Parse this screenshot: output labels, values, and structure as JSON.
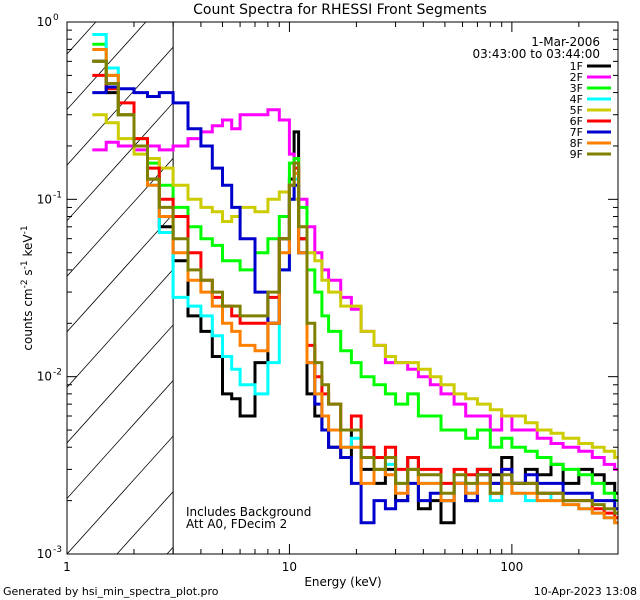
{
  "chart_data": {
    "type": "line",
    "title": "Count Spectra for RHESSI Front Segments",
    "xlabel": "Energy (keV)",
    "ylabel": {
      "prefix": "counts cm",
      "exp1": "-2",
      "mid1": " s",
      "exp2": "-1",
      "mid2": " keV",
      "exp3": "-1"
    },
    "xscale": "log",
    "yscale": "log",
    "xlim": [
      1,
      300
    ],
    "ylim": [
      0.001,
      1.0
    ],
    "x_ticks": [
      {
        "v": 1,
        "label": "1"
      },
      {
        "v": 10,
        "label": "10"
      },
      {
        "v": 100,
        "label": "100"
      }
    ],
    "y_ticks": [
      {
        "v": 0.001,
        "base": "10",
        "exp": "-3"
      },
      {
        "v": 0.01,
        "base": "10",
        "exp": "-2"
      },
      {
        "v": 0.1,
        "base": "10",
        "exp": "-1"
      },
      {
        "v": 1,
        "base": "10",
        "exp": "0"
      }
    ],
    "date_label": "1-Mar-2006",
    "time_label": "03:43:00 to 03:44:00",
    "annotations": [
      "Includes Background",
      "Att A0, FDecim 2"
    ],
    "hatch_xmax": 3,
    "footer_left": "Generated by hsi_min_spectra_plot.pro",
    "footer_right": "10-Apr-2023 13:08",
    "legend_position": "top-right",
    "series": [
      {
        "name": "1F",
        "color": "#000000",
        "x": [
          1.3,
          1.5,
          1.7,
          2,
          2.3,
          2.6,
          3,
          3.5,
          4,
          4.5,
          5,
          5.5,
          6,
          7,
          8,
          9,
          10,
          10.5,
          11,
          12,
          13,
          14,
          15,
          17,
          19,
          21,
          24,
          27,
          30,
          34,
          38,
          43,
          48,
          55,
          62,
          70,
          80,
          90,
          100,
          115,
          130,
          150,
          170,
          200,
          230,
          260,
          290
        ],
        "y": [
          0.6,
          0.4,
          0.3,
          0.2,
          0.13,
          0.07,
          0.045,
          0.022,
          0.018,
          0.013,
          0.008,
          0.0075,
          0.006,
          0.012,
          0.02,
          0.06,
          0.13,
          0.24,
          0.06,
          0.008,
          0.006,
          0.005,
          0.004,
          0.0035,
          0.005,
          0.003,
          0.0025,
          0.003,
          0.002,
          0.0035,
          0.0018,
          0.002,
          0.0015,
          0.0025,
          0.002,
          0.003,
          0.0028,
          0.0035,
          0.0025,
          0.003,
          0.0028,
          0.0032,
          0.0025,
          0.003,
          0.0028,
          0.0025,
          0.0022
        ]
      },
      {
        "name": "2F",
        "color": "#ff00ff",
        "x": [
          1.3,
          1.5,
          1.7,
          2,
          2.3,
          2.6,
          3,
          3.5,
          4,
          4.5,
          5,
          5.5,
          6,
          7,
          8,
          9,
          10,
          10.5,
          11,
          12,
          13,
          14,
          15,
          17,
          19,
          21,
          24,
          27,
          30,
          34,
          38,
          43,
          48,
          55,
          62,
          70,
          80,
          90,
          100,
          115,
          130,
          150,
          170,
          200,
          230,
          260,
          290
        ],
        "y": [
          0.19,
          0.21,
          0.2,
          0.19,
          0.2,
          0.19,
          0.2,
          0.22,
          0.24,
          0.26,
          0.28,
          0.25,
          0.3,
          0.3,
          0.32,
          0.28,
          0.18,
          0.15,
          0.1,
          0.07,
          0.05,
          0.04,
          0.035,
          0.028,
          0.024,
          0.018,
          0.015,
          0.012,
          0.012,
          0.011,
          0.01,
          0.009,
          0.008,
          0.007,
          0.006,
          0.006,
          0.005,
          0.006,
          0.005,
          0.005,
          0.0045,
          0.0042,
          0.004,
          0.0038,
          0.0035,
          0.0032,
          0.003
        ]
      },
      {
        "name": "3F",
        "color": "#00ff00",
        "x": [
          1.3,
          1.5,
          1.7,
          2,
          2.3,
          2.6,
          3,
          3.5,
          4,
          4.5,
          5,
          5.5,
          6,
          7,
          8,
          9,
          10,
          10.5,
          11,
          12,
          13,
          14,
          15,
          17,
          19,
          21,
          24,
          27,
          30,
          34,
          38,
          43,
          48,
          55,
          62,
          70,
          80,
          90,
          100,
          115,
          130,
          150,
          170,
          200,
          230,
          260,
          290
        ],
        "y": [
          0.75,
          0.5,
          0.3,
          0.22,
          0.16,
          0.12,
          0.09,
          0.07,
          0.06,
          0.055,
          0.045,
          0.045,
          0.04,
          0.05,
          0.06,
          0.08,
          0.16,
          0.17,
          0.09,
          0.04,
          0.03,
          0.022,
          0.018,
          0.014,
          0.012,
          0.01,
          0.009,
          0.008,
          0.007,
          0.008,
          0.006,
          0.006,
          0.005,
          0.005,
          0.0045,
          0.005,
          0.004,
          0.0045,
          0.004,
          0.0038,
          0.0035,
          0.0032,
          0.003,
          0.0028,
          0.0025,
          0.0022,
          0.002
        ]
      },
      {
        "name": "4F",
        "color": "#00ffff",
        "x": [
          1.3,
          1.5,
          1.7,
          2,
          2.3,
          2.6,
          3,
          3.5,
          4,
          4.5,
          5,
          5.5,
          6,
          7,
          8,
          9,
          10,
          10.5,
          11,
          12,
          13,
          14,
          15,
          17,
          19,
          21,
          24,
          27,
          30,
          34,
          38,
          43,
          48,
          55,
          62,
          70,
          80,
          90,
          100,
          115,
          130,
          150,
          170,
          200,
          230,
          260,
          290
        ],
        "y": [
          0.85,
          0.55,
          0.3,
          0.2,
          0.12,
          0.065,
          0.028,
          0.025,
          0.022,
          0.017,
          0.013,
          0.011,
          0.009,
          0.008,
          0.012,
          0.04,
          0.1,
          0.13,
          0.05,
          0.012,
          0.008,
          0.006,
          0.005,
          0.004,
          0.0045,
          0.0035,
          0.003,
          0.0032,
          0.0025,
          0.003,
          0.0025,
          0.0025,
          0.002,
          0.0025,
          0.0022,
          0.0025,
          0.002,
          0.0025,
          0.0022,
          0.002,
          0.0022,
          0.002,
          0.0019,
          0.0018,
          0.0017,
          0.0016,
          0.0015
        ]
      },
      {
        "name": "5F",
        "color": "#cccc00",
        "x": [
          1.3,
          1.5,
          1.7,
          2,
          2.3,
          2.6,
          3,
          3.5,
          4,
          4.5,
          5,
          5.5,
          6,
          7,
          8,
          9,
          10,
          10.5,
          11,
          12,
          13,
          14,
          15,
          17,
          19,
          21,
          24,
          27,
          30,
          34,
          38,
          43,
          48,
          55,
          62,
          70,
          80,
          90,
          100,
          115,
          130,
          150,
          170,
          200,
          230,
          260,
          290
        ],
        "y": [
          0.3,
          0.27,
          0.22,
          0.18,
          0.17,
          0.15,
          0.12,
          0.1,
          0.09,
          0.085,
          0.075,
          0.08,
          0.09,
          0.085,
          0.1,
          0.11,
          0.12,
          0.1,
          0.07,
          0.05,
          0.045,
          0.035,
          0.03,
          0.025,
          0.025,
          0.018,
          0.015,
          0.013,
          0.012,
          0.012,
          0.011,
          0.01,
          0.009,
          0.008,
          0.0075,
          0.007,
          0.0065,
          0.006,
          0.006,
          0.0055,
          0.005,
          0.0048,
          0.0045,
          0.0042,
          0.004,
          0.0038,
          0.0035
        ]
      },
      {
        "name": "6F",
        "color": "#ff0000",
        "x": [
          1.3,
          1.5,
          1.7,
          2,
          2.3,
          2.6,
          3,
          3.5,
          4,
          4.5,
          5,
          5.5,
          6,
          7,
          8,
          9,
          10,
          10.5,
          11,
          12,
          13,
          14,
          15,
          17,
          19,
          21,
          24,
          27,
          30,
          34,
          38,
          43,
          48,
          55,
          62,
          70,
          80,
          90,
          100,
          115,
          130,
          150,
          170,
          200,
          230,
          260,
          290
        ],
        "y": [
          0.5,
          0.42,
          0.35,
          0.22,
          0.15,
          0.1,
          0.08,
          0.05,
          0.035,
          0.028,
          0.025,
          0.022,
          0.02,
          0.02,
          0.028,
          0.06,
          0.12,
          0.15,
          0.06,
          0.015,
          0.01,
          0.008,
          0.007,
          0.005,
          0.006,
          0.004,
          0.0035,
          0.004,
          0.003,
          0.0035,
          0.003,
          0.003,
          0.0025,
          0.003,
          0.0028,
          0.003,
          0.0025,
          0.003,
          0.0025,
          0.0025,
          0.0022,
          0.0022,
          0.002,
          0.002,
          0.0018,
          0.0017,
          0.0016
        ]
      },
      {
        "name": "7F",
        "color": "#0000cc",
        "x": [
          1.3,
          1.5,
          1.7,
          2,
          2.3,
          2.6,
          3,
          3.5,
          4,
          4.5,
          5,
          5.5,
          6,
          7,
          8,
          9,
          10,
          10.5,
          11,
          12,
          13,
          14,
          15,
          17,
          19,
          21,
          24,
          27,
          30,
          34,
          38,
          43,
          48,
          55,
          62,
          70,
          80,
          90,
          100,
          115,
          130,
          150,
          170,
          200,
          230,
          260,
          290
        ],
        "y": [
          0.4,
          0.43,
          0.42,
          0.4,
          0.38,
          0.4,
          0.35,
          0.25,
          0.2,
          0.15,
          0.12,
          0.09,
          0.06,
          0.03,
          0.02,
          0.04,
          0.1,
          0.12,
          0.05,
          0.012,
          0.007,
          0.005,
          0.004,
          0.0035,
          0.0025,
          0.0015,
          0.002,
          0.0018,
          0.002,
          0.0025,
          0.002,
          0.0022,
          0.002,
          0.0025,
          0.002,
          0.0028,
          0.0025,
          0.003,
          0.0025,
          0.0028,
          0.0025,
          0.0025,
          0.0022,
          0.0022,
          0.002,
          0.002,
          0.0018
        ]
      },
      {
        "name": "8F",
        "color": "#ff8000",
        "x": [
          1.3,
          1.5,
          1.7,
          2,
          2.3,
          2.6,
          3,
          3.5,
          4,
          4.5,
          5,
          5.5,
          6,
          7,
          8,
          9,
          10,
          10.5,
          11,
          12,
          13,
          14,
          15,
          17,
          19,
          21,
          24,
          27,
          30,
          34,
          38,
          43,
          48,
          55,
          62,
          70,
          80,
          90,
          100,
          115,
          130,
          150,
          170,
          200,
          230,
          260,
          290
        ],
        "y": [
          0.7,
          0.5,
          0.3,
          0.2,
          0.12,
          0.08,
          0.05,
          0.035,
          0.03,
          0.025,
          0.02,
          0.018,
          0.015,
          0.014,
          0.02,
          0.05,
          0.12,
          0.14,
          0.05,
          0.012,
          0.008,
          0.006,
          0.005,
          0.004,
          0.004,
          0.0025,
          0.003,
          0.0028,
          0.0022,
          0.003,
          0.0025,
          0.0025,
          0.002,
          0.0025,
          0.0022,
          0.0025,
          0.0022,
          0.0025,
          0.0022,
          0.0022,
          0.002,
          0.002,
          0.0019,
          0.0018,
          0.0017,
          0.0016,
          0.0015
        ]
      },
      {
        "name": "9F",
        "color": "#808000",
        "x": [
          1.3,
          1.5,
          1.7,
          2,
          2.3,
          2.6,
          3,
          3.5,
          4,
          4.5,
          5,
          5.5,
          6,
          7,
          8,
          9,
          10,
          10.5,
          11,
          12,
          13,
          14,
          15,
          17,
          19,
          21,
          24,
          27,
          30,
          34,
          38,
          43,
          48,
          55,
          62,
          70,
          80,
          90,
          100,
          115,
          130,
          150,
          170,
          200,
          230,
          260,
          290
        ],
        "y": [
          0.6,
          0.45,
          0.3,
          0.2,
          0.13,
          0.09,
          0.06,
          0.04,
          0.035,
          0.03,
          0.025,
          0.025,
          0.022,
          0.022,
          0.03,
          0.06,
          0.12,
          0.16,
          0.07,
          0.02,
          0.012,
          0.009,
          0.007,
          0.005,
          0.005,
          0.0035,
          0.003,
          0.0035,
          0.0025,
          0.003,
          0.0028,
          0.0028,
          0.0022,
          0.0028,
          0.0025,
          0.0028,
          0.0022,
          0.0028,
          0.0025,
          0.0025,
          0.0022,
          0.0022,
          0.002,
          0.002,
          0.0019,
          0.0018,
          0.0017
        ]
      }
    ]
  }
}
